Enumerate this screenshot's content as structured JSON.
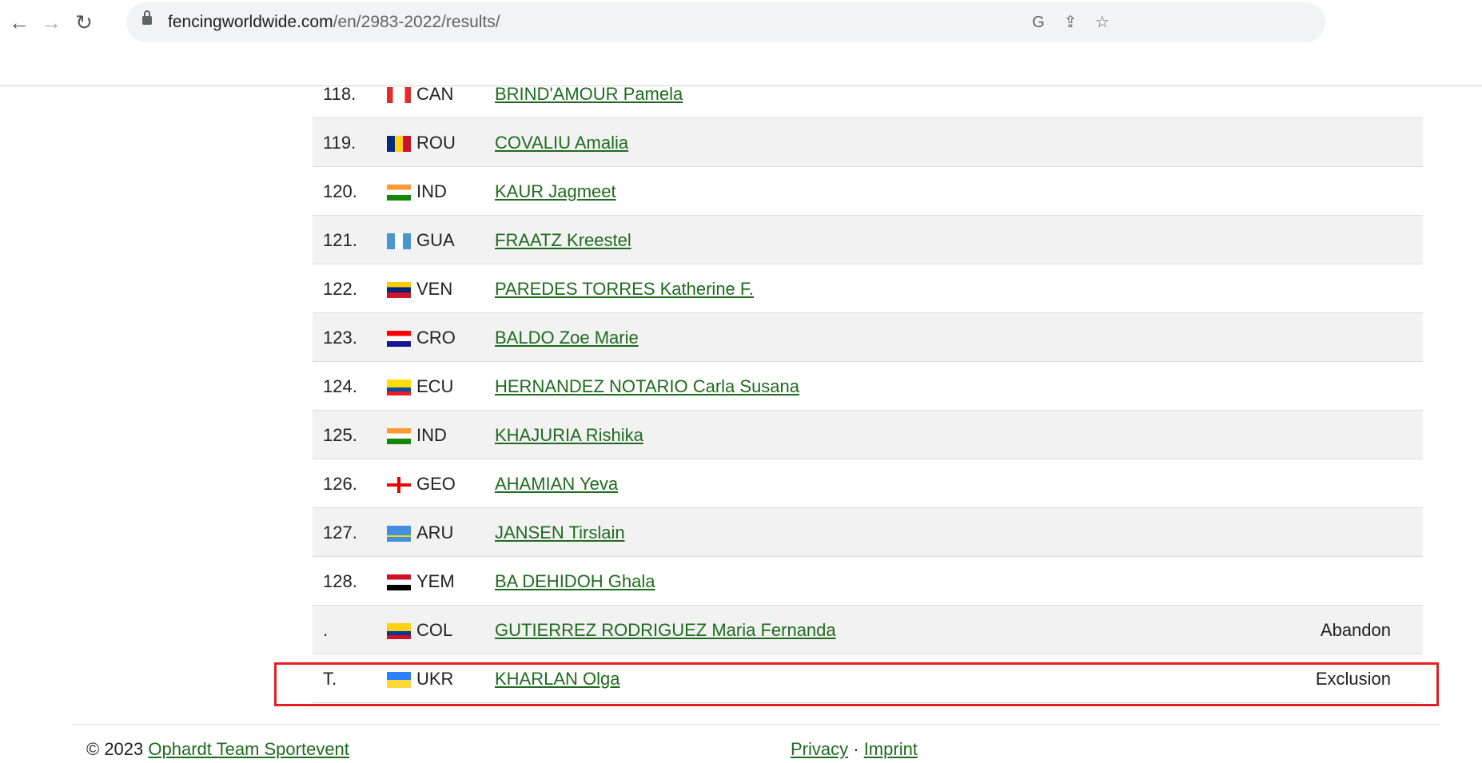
{
  "browser": {
    "url_host": "fencingworldwide.com",
    "url_path": "/en/2983-2022/results/"
  },
  "results": [
    {
      "rank": "118.",
      "country": "CAN",
      "name": "BRIND'AMOUR Pamela",
      "status": "",
      "flag": "can"
    },
    {
      "rank": "119.",
      "country": "ROU",
      "name": "COVALIU Amalia",
      "status": "",
      "flag": "rou"
    },
    {
      "rank": "120.",
      "country": "IND",
      "name": "KAUR Jagmeet",
      "status": "",
      "flag": "ind"
    },
    {
      "rank": "121.",
      "country": "GUA",
      "name": "FRAATZ Kreestel",
      "status": "",
      "flag": "gua"
    },
    {
      "rank": "122.",
      "country": "VEN",
      "name": "PAREDES TORRES Katherine F.",
      "status": "",
      "flag": "ven"
    },
    {
      "rank": "123.",
      "country": "CRO",
      "name": "BALDO Zoe Marie",
      "status": "",
      "flag": "cro"
    },
    {
      "rank": "124.",
      "country": "ECU",
      "name": "HERNANDEZ NOTARIO Carla Susana",
      "status": "",
      "flag": "ecu"
    },
    {
      "rank": "125.",
      "country": "IND",
      "name": "KHAJURIA Rishika",
      "status": "",
      "flag": "ind"
    },
    {
      "rank": "126.",
      "country": "GEO",
      "name": "AHAMIAN Yeva",
      "status": "",
      "flag": "geo"
    },
    {
      "rank": "127.",
      "country": "ARU",
      "name": "JANSEN Tirslain",
      "status": "",
      "flag": "aru"
    },
    {
      "rank": "128.",
      "country": "YEM",
      "name": "BA DEHIDOH Ghala",
      "status": "",
      "flag": "yem"
    },
    {
      "rank": ".",
      "country": "COL",
      "name": "GUTIERREZ RODRIGUEZ Maria Fernanda",
      "status": "Abandon",
      "flag": "col"
    },
    {
      "rank": "T.",
      "country": "UKR",
      "name": "KHARLAN Olga",
      "status": "Exclusion",
      "flag": "ukr"
    }
  ],
  "highlight_color": "#e81c24",
  "footer": {
    "copyright": "© 2023 ",
    "company": "Ophardt Team Sportevent",
    "privacy": "Privacy",
    "sep": " · ",
    "imprint": "Imprint"
  }
}
